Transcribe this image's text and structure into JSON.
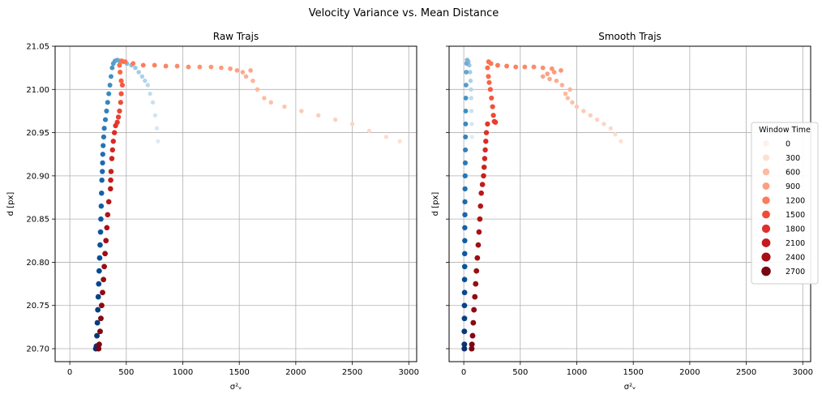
{
  "figure": {
    "suptitle": "Velocity Variance vs. Mean Distance"
  },
  "legend": {
    "title": "Window Time",
    "entries": [
      {
        "label": "0",
        "color": "#fff0e9"
      },
      {
        "label": "300",
        "color": "#fee0d2"
      },
      {
        "label": "600",
        "color": "#fcbba1"
      },
      {
        "label": "900",
        "color": "#fc9f82"
      },
      {
        "label": "1200",
        "color": "#fb7b5b"
      },
      {
        "label": "1500",
        "color": "#f34a36"
      },
      {
        "label": "1800",
        "color": "#e0302b"
      },
      {
        "label": "2100",
        "color": "#c5191d"
      },
      {
        "label": "2400",
        "color": "#a50f15"
      },
      {
        "label": "2700",
        "color": "#7a0611"
      }
    ]
  },
  "chart_data": [
    {
      "type": "scatter",
      "title": "Raw Trajs",
      "xlabel": "σ²ᵥ",
      "ylabel": "d [px]",
      "xlim": [
        -130,
        3070
      ],
      "ylim": [
        20.685,
        21.05
      ],
      "xticks": [
        "0",
        "500",
        "1000",
        "1500",
        "2000",
        "2500",
        "3000"
      ],
      "yticks": [
        "20.70",
        "20.75",
        "20.80",
        "20.85",
        "20.90",
        "20.95",
        "21.00",
        "21.05"
      ],
      "grid": true,
      "series": [
        {
          "colormap": "blues",
          "points": [
            [
              780,
              20.94
            ],
            [
              770,
              20.955
            ],
            [
              755,
              20.97
            ],
            [
              735,
              20.985
            ],
            [
              710,
              20.995
            ],
            [
              690,
              21.005
            ],
            [
              665,
              21.01
            ],
            [
              640,
              21.015
            ],
            [
              610,
              21.02
            ],
            [
              580,
              21.025
            ],
            [
              545,
              21.028
            ],
            [
              505,
              21.03
            ],
            [
              470,
              21.032
            ],
            [
              440,
              21.033
            ],
            [
              420,
              21.034
            ],
            [
              400,
              21.033
            ],
            [
              385,
              21.03
            ],
            [
              375,
              21.025
            ],
            [
              365,
              21.015
            ],
            [
              355,
              21.005
            ],
            [
              345,
              20.995
            ],
            [
              335,
              20.985
            ],
            [
              325,
              20.975
            ],
            [
              315,
              20.965
            ],
            [
              305,
              20.955
            ],
            [
              300,
              20.945
            ],
            [
              295,
              20.935
            ],
            [
              292,
              20.925
            ],
            [
              290,
              20.915
            ],
            [
              288,
              20.905
            ],
            [
              284,
              20.895
            ],
            [
              281,
              20.88
            ],
            [
              278,
              20.865
            ],
            [
              275,
              20.85
            ],
            [
              272,
              20.835
            ],
            [
              268,
              20.82
            ],
            [
              264,
              20.805
            ],
            [
              260,
              20.79
            ],
            [
              256,
              20.775
            ],
            [
              252,
              20.76
            ],
            [
              248,
              20.745
            ],
            [
              244,
              20.73
            ],
            [
              240,
              20.715
            ],
            [
              236,
              20.703
            ],
            [
              230,
              20.7
            ]
          ]
        },
        {
          "colormap": "reds",
          "points": [
            [
              2920,
              20.94
            ],
            [
              2800,
              20.945
            ],
            [
              2650,
              20.952
            ],
            [
              2500,
              20.96
            ],
            [
              2350,
              20.965
            ],
            [
              2200,
              20.97
            ],
            [
              2050,
              20.975
            ],
            [
              1900,
              20.98
            ],
            [
              1780,
              20.985
            ],
            [
              1720,
              20.99
            ],
            [
              1660,
              21.0
            ],
            [
              1620,
              21.01
            ],
            [
              1560,
              21.015
            ],
            [
              1530,
              21.02
            ],
            [
              1600,
              21.022
            ],
            [
              1480,
              21.022
            ],
            [
              1420,
              21.024
            ],
            [
              1340,
              21.025
            ],
            [
              1250,
              21.026
            ],
            [
              1150,
              21.026
            ],
            [
              1050,
              21.026
            ],
            [
              950,
              21.027
            ],
            [
              850,
              21.027
            ],
            [
              750,
              21.028
            ],
            [
              650,
              21.028
            ],
            [
              560,
              21.03
            ],
            [
              490,
              21.032
            ],
            [
              460,
              21.033
            ],
            [
              440,
              21.028
            ],
            [
              445,
              21.02
            ],
            [
              455,
              21.01
            ],
            [
              465,
              21.005
            ],
            [
              455,
              20.995
            ],
            [
              450,
              20.985
            ],
            [
              440,
              20.975
            ],
            [
              430,
              20.968
            ],
            [
              420,
              20.962
            ],
            [
              405,
              20.958
            ],
            [
              395,
              20.95
            ],
            [
              385,
              20.94
            ],
            [
              378,
              20.93
            ],
            [
              372,
              20.92
            ],
            [
              365,
              20.905
            ],
            [
              362,
              20.895
            ],
            [
              360,
              20.885
            ],
            [
              345,
              20.87
            ],
            [
              335,
              20.855
            ],
            [
              328,
              20.84
            ],
            [
              320,
              20.825
            ],
            [
              312,
              20.81
            ],
            [
              305,
              20.795
            ],
            [
              298,
              20.78
            ],
            [
              290,
              20.765
            ],
            [
              282,
              20.75
            ],
            [
              275,
              20.735
            ],
            [
              268,
              20.72
            ],
            [
              260,
              20.705
            ],
            [
              255,
              20.7
            ]
          ]
        }
      ]
    },
    {
      "type": "scatter",
      "title": "Smooth Trajs",
      "xlabel": "σ²ᵥ",
      "ylabel": "d [px]",
      "xlim": [
        -130,
        3070
      ],
      "ylim": [
        20.685,
        21.05
      ],
      "xticks": [
        "0",
        "500",
        "1000",
        "1500",
        "2000",
        "2500",
        "3000"
      ],
      "yticks": [
        "20.70",
        "20.75",
        "20.80",
        "20.85",
        "20.90",
        "20.95",
        "21.00",
        "21.05"
      ],
      "grid": true,
      "series": [
        {
          "colormap": "blues",
          "points": [
            [
              72,
              20.945
            ],
            [
              70,
              20.96
            ],
            [
              68,
              20.975
            ],
            [
              66,
              20.99
            ],
            [
              64,
              21.0
            ],
            [
              60,
              21.01
            ],
            [
              55,
              21.02
            ],
            [
              48,
              21.028
            ],
            [
              40,
              21.032
            ],
            [
              30,
              21.034
            ],
            [
              25,
              21.03
            ],
            [
              22,
              21.02
            ],
            [
              20,
              21.005
            ],
            [
              18,
              20.99
            ],
            [
              17,
              20.975
            ],
            [
              16,
              20.96
            ],
            [
              15,
              20.945
            ],
            [
              14,
              20.93
            ],
            [
              13,
              20.915
            ],
            [
              12,
              20.9
            ],
            [
              11,
              20.885
            ],
            [
              10,
              20.87
            ],
            [
              10,
              20.855
            ],
            [
              9,
              20.84
            ],
            [
              9,
              20.825
            ],
            [
              8,
              20.81
            ],
            [
              8,
              20.795
            ],
            [
              7,
              20.78
            ],
            [
              7,
              20.765
            ],
            [
              6,
              20.75
            ],
            [
              6,
              20.735
            ],
            [
              5,
              20.72
            ],
            [
              5,
              20.705
            ],
            [
              5,
              20.7
            ]
          ]
        },
        {
          "colormap": "reds",
          "points": [
            [
              1390,
              20.94
            ],
            [
              1340,
              20.948
            ],
            [
              1300,
              20.955
            ],
            [
              1240,
              20.96
            ],
            [
              1180,
              20.965
            ],
            [
              1120,
              20.97
            ],
            [
              1060,
              20.975
            ],
            [
              1000,
              20.98
            ],
            [
              960,
              20.985
            ],
            [
              920,
              20.99
            ],
            [
              900,
              20.995
            ],
            [
              940,
              21.0
            ],
            [
              870,
              21.005
            ],
            [
              820,
              21.01
            ],
            [
              760,
              21.012
            ],
            [
              700,
              21.015
            ],
            [
              740,
              21.018
            ],
            [
              800,
              21.02
            ],
            [
              860,
              21.022
            ],
            [
              780,
              21.024
            ],
            [
              700,
              21.025
            ],
            [
              620,
              21.026
            ],
            [
              540,
              21.026
            ],
            [
              460,
              21.026
            ],
            [
              380,
              21.027
            ],
            [
              300,
              21.028
            ],
            [
              240,
              21.03
            ],
            [
              220,
              21.032
            ],
            [
              210,
              21.025
            ],
            [
              218,
              21.015
            ],
            [
              225,
              21.008
            ],
            [
              235,
              21.0
            ],
            [
              245,
              20.99
            ],
            [
              255,
              20.98
            ],
            [
              262,
              20.97
            ],
            [
              270,
              20.963
            ],
            [
              280,
              20.962
            ],
            [
              210,
              20.96
            ],
            [
              200,
              20.95
            ],
            [
              195,
              20.94
            ],
            [
              190,
              20.93
            ],
            [
              185,
              20.92
            ],
            [
              180,
              20.91
            ],
            [
              175,
              20.9
            ],
            [
              165,
              20.89
            ],
            [
              155,
              20.88
            ],
            [
              148,
              20.865
            ],
            [
              142,
              20.85
            ],
            [
              135,
              20.835
            ],
            [
              128,
              20.82
            ],
            [
              120,
              20.805
            ],
            [
              112,
              20.79
            ],
            [
              105,
              20.775
            ],
            [
              98,
              20.76
            ],
            [
              90,
              20.745
            ],
            [
              84,
              20.73
            ],
            [
              78,
              20.715
            ],
            [
              72,
              20.705
            ],
            [
              70,
              20.7
            ]
          ]
        }
      ]
    }
  ]
}
